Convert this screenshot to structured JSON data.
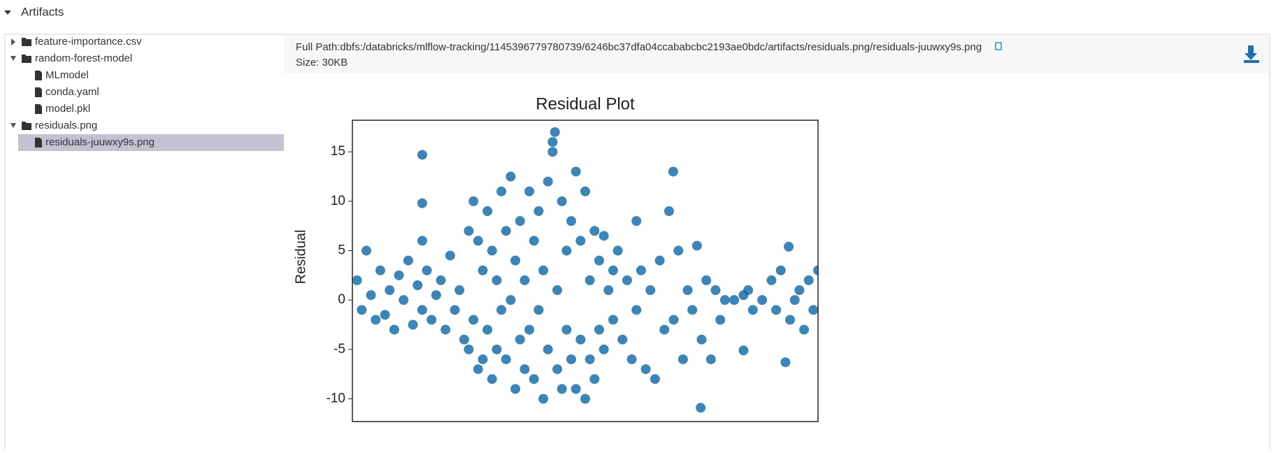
{
  "header": {
    "title": "Artifacts"
  },
  "tree": [
    {
      "label": "feature-importance.csv",
      "expanded": false,
      "children": []
    },
    {
      "label": "random-forest-model",
      "expanded": true,
      "children": [
        {
          "label": "MLmodel"
        },
        {
          "label": "conda.yaml"
        },
        {
          "label": "model.pkl"
        }
      ]
    },
    {
      "label": "residuals.png",
      "expanded": true,
      "children": [
        {
          "label": "residuals-juuwxy9s.png",
          "selected": true
        }
      ]
    }
  ],
  "detail": {
    "path": "Full Path:dbfs:/databricks/mlflow-tracking/1145396779780739/6246bc37dfa04ccababcbc2193ae0bdc/artifacts/residuals.png/residuals-juuwxy9s.png",
    "size": "Size: 30KB"
  },
  "chart_data": {
    "type": "scatter",
    "title": "Residual Plot",
    "y_label": "Residual",
    "color": "#0a66a6",
    "xlim": [
      0,
      100
    ],
    "ylim": [
      -12.3,
      18.2
    ],
    "yticks": [
      -10,
      -5,
      0,
      5,
      10,
      15
    ],
    "x": [
      1,
      2,
      3,
      4,
      5,
      6,
      7,
      8,
      9,
      10,
      11,
      12,
      13,
      14,
      15,
      15,
      15,
      15,
      16,
      17,
      18,
      19,
      20,
      21,
      22,
      23,
      24,
      25,
      25,
      26,
      26,
      27,
      27,
      28,
      28,
      29,
      29,
      30,
      30,
      31,
      31,
      32,
      32,
      33,
      33,
      34,
      34,
      35,
      35,
      36,
      36,
      37,
      37,
      38,
      38,
      39,
      39,
      40,
      40,
      41,
      41,
      42,
      42,
      43,
      43.5,
      43,
      44,
      44,
      45,
      45,
      46,
      46,
      47,
      47,
      48,
      48,
      49,
      49,
      50,
      50,
      51,
      51,
      52,
      52,
      53,
      53,
      54,
      54,
      55,
      56,
      56,
      57,
      58,
      59,
      60,
      61,
      61,
      62,
      63,
      64,
      65,
      66,
      67,
      68,
      68.9,
      69,
      70,
      71,
      72,
      73,
      74,
      74.8,
      75,
      76,
      77,
      78,
      79,
      80,
      82,
      84,
      84,
      85,
      86,
      88,
      90,
      91,
      92,
      93,
      93.7,
      94,
      95,
      96,
      97,
      98,
      99,
      100
    ],
    "values": [
      2,
      -1,
      5,
      0.5,
      -2,
      3,
      -1.5,
      1,
      -3,
      2.5,
      0,
      4,
      -2.5,
      1.5,
      14.7,
      9.8,
      6,
      -1,
      3,
      -2,
      0.5,
      2,
      -3,
      4.5,
      -1,
      1,
      -4,
      7,
      -5,
      10,
      -2,
      6,
      -7,
      3,
      -6,
      9,
      -3,
      5,
      -8,
      2,
      -5,
      11,
      -1,
      7,
      -6,
      12.5,
      0,
      4,
      -9,
      8,
      -4,
      2,
      -7,
      11,
      -3,
      6,
      -8,
      9,
      -1,
      3,
      -10,
      12,
      -5,
      16,
      17,
      15,
      1,
      -7,
      10,
      -9,
      5,
      -3,
      8,
      -6,
      13,
      -9,
      6,
      -4,
      11,
      -10,
      2,
      -6,
      7,
      -8,
      4,
      -3,
      6.5,
      -5,
      1,
      3,
      -2,
      5,
      -4,
      2,
      -6,
      8,
      -1,
      3,
      -7,
      1,
      -8,
      4,
      -3,
      9,
      13,
      -2,
      5,
      -6,
      1,
      -1,
      5.5,
      -10.9,
      -4,
      2,
      -6,
      1,
      -2,
      0,
      0,
      -5.1,
      0.5,
      1,
      -1,
      0,
      2,
      -1,
      3,
      -6.3,
      5.4,
      -2,
      0,
      1,
      -3,
      2,
      -1,
      3
    ]
  }
}
